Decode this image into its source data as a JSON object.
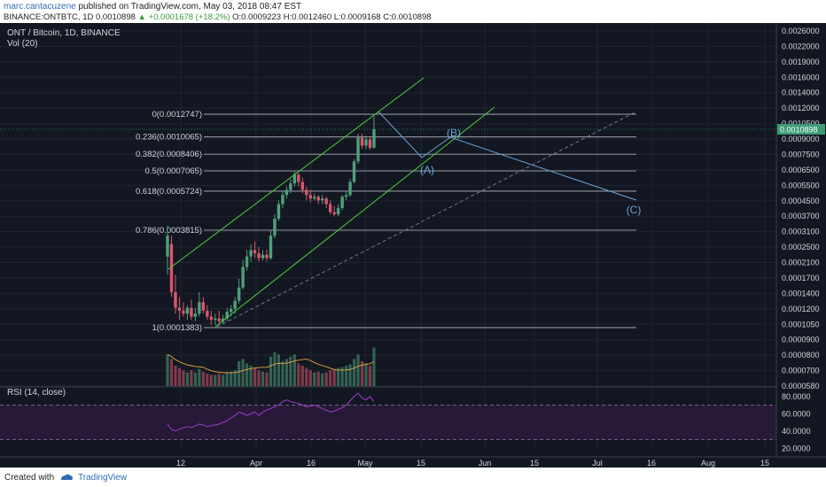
{
  "header": {
    "author": "marc.cantacuzene",
    "published_text": " published on TradingView.com, May 03, 2018 08:47 EST",
    "symbol_line": "BINANCE:ONTBTC, 1D  0.0010898 ",
    "change": "▲ +0.0001678 (+18.2%)",
    "ohlc": " O:0.0009223 H:0.0012460 L:0.0009168 C:0.0010898"
  },
  "footer": {
    "created_with": "Created with",
    "brand": "TradingView"
  },
  "colors": {
    "background": "#131722",
    "candle_up": "#4fa07a",
    "candle_down": "#d9576b",
    "channel": "#4ccf3a",
    "fib": "#c8ccd6",
    "elliott": "#6ba6d8",
    "rsi": "#9b3fc8",
    "price_tag": "#3d9b75"
  },
  "chart_data": {
    "type": "candlestick",
    "title": "ONT / Bitcoin, 1D, BINANCE",
    "volume_label": "Vol (20)",
    "rsi_label": "RSI (14, close)",
    "x_ticks": [
      "12",
      "Apr",
      "16",
      "May",
      "15",
      "Jun",
      "15",
      "Jul",
      "16",
      "Aug",
      "15"
    ],
    "y_ticks": [
      "0.0026000",
      "0.0022000",
      "0.0019000",
      "0.0016000",
      "0.0014000",
      "0.0012000",
      "0.0010500",
      "0.0009000",
      "0.0007500",
      "0.0006500",
      "0.0005500",
      "0.0004500",
      "0.0003700",
      "0.0003100",
      "0.0002500",
      "0.0002100",
      "0.0001700",
      "0.0001400",
      "0.0001200",
      "0.0001050",
      "0.0000900",
      "0.0000800",
      "0.0000700",
      "0.0000580"
    ],
    "rsi_ticks": [
      "80.0000",
      "60.0000",
      "40.0000",
      "20.0000"
    ],
    "current_price_label": "0.0010898",
    "fib_levels": [
      {
        "label": "0(0.0012747)",
        "price": 0.0012747
      },
      {
        "label": "0.236(0.0010065)",
        "price": 0.0010065
      },
      {
        "label": "0.382(0.0008406)",
        "price": 0.0008406
      },
      {
        "label": "0.5(0.0007065)",
        "price": 0.0007065
      },
      {
        "label": "0.618(0.0005724)",
        "price": 0.0005724
      },
      {
        "label": "0.786(0.0003815)",
        "price": 0.0003815
      },
      {
        "label": "1(0.0001383)",
        "price": 0.0001383
      }
    ],
    "wave_labels": [
      "(A)",
      "(B)",
      "(C)"
    ],
    "candles": [
      [
        0.00029,
        0.0004,
        0.00036,
        0.00024
      ],
      [
        0.00033,
        0.00036,
        0.0002,
        0.00019
      ],
      [
        0.0002,
        0.00024,
        0.00017,
        0.00016
      ],
      [
        0.00017,
        0.00019,
        0.000165,
        0.00015
      ],
      [
        0.000165,
        0.00018,
        0.00016,
        0.000155
      ],
      [
        0.00016,
        0.000175,
        0.00017,
        0.00015
      ],
      [
        0.00017,
        0.000185,
        0.000155,
        0.00015
      ],
      [
        0.000155,
        0.00017,
        0.00016,
        0.000148
      ],
      [
        0.00016,
        0.0002,
        0.00018,
        0.000155
      ],
      [
        0.00018,
        0.00019,
        0.000165,
        0.00016
      ],
      [
        0.000165,
        0.000175,
        0.000155,
        0.00015
      ],
      [
        0.000155,
        0.000165,
        0.00015,
        0.000142
      ],
      [
        0.00015,
        0.00016,
        0.000152,
        0.000142
      ],
      [
        0.000152,
        0.000165,
        0.000148,
        0.000142
      ],
      [
        0.000148,
        0.000158,
        0.000152,
        0.000143
      ],
      [
        0.000152,
        0.00017,
        0.000163,
        0.000148
      ],
      [
        0.000163,
        0.000175,
        0.000168,
        0.000155
      ],
      [
        0.000168,
        0.00019,
        0.000183,
        0.00016
      ],
      [
        0.000183,
        0.00023,
        0.00021,
        0.000178
      ],
      [
        0.00021,
        0.00028,
        0.00026,
        0.000205
      ],
      [
        0.00026,
        0.00031,
        0.00029,
        0.00025
      ],
      [
        0.00029,
        0.00033,
        0.00031,
        0.000275
      ],
      [
        0.00031,
        0.00034,
        0.0003,
        0.000285
      ],
      [
        0.0003,
        0.00032,
        0.000285,
        0.000275
      ],
      [
        0.000285,
        0.00031,
        0.000295,
        0.000278
      ],
      [
        0.000295,
        0.00031,
        0.000285,
        0.000275
      ],
      [
        0.000285,
        0.00038,
        0.00036,
        0.00028
      ],
      [
        0.00036,
        0.00045,
        0.00043,
        0.00035
      ],
      [
        0.00043,
        0.00052,
        0.0005,
        0.00042
      ],
      [
        0.0005,
        0.00057,
        0.00055,
        0.00048
      ],
      [
        0.00055,
        0.0006,
        0.00058,
        0.00053
      ],
      [
        0.00058,
        0.00065,
        0.00062,
        0.00056
      ],
      [
        0.00062,
        0.0007,
        0.00068,
        0.0006
      ],
      [
        0.00068,
        0.00069,
        0.00063,
        0.0006
      ],
      [
        0.00063,
        0.00066,
        0.00058,
        0.00056
      ],
      [
        0.00058,
        0.0006,
        0.00055,
        0.00052
      ],
      [
        0.00055,
        0.00058,
        0.00053,
        0.00051
      ],
      [
        0.00053,
        0.00056,
        0.00054,
        0.00052
      ],
      [
        0.00054,
        0.00055,
        0.00052,
        0.0005
      ],
      [
        0.00052,
        0.00055,
        0.00053,
        0.0005
      ],
      [
        0.00053,
        0.00054,
        0.0005,
        0.00048
      ],
      [
        0.0005,
        0.00052,
        0.00046,
        0.00045
      ],
      [
        0.00046,
        0.00049,
        0.00045,
        0.00044
      ],
      [
        0.00045,
        0.0005,
        0.00048,
        0.00044
      ],
      [
        0.00048,
        0.00055,
        0.00054,
        0.00047
      ],
      [
        0.00054,
        0.00057,
        0.00055,
        0.00052
      ],
      [
        0.00055,
        0.00065,
        0.00063,
        0.00054
      ],
      [
        0.00063,
        0.0008,
        0.00078,
        0.00062
      ],
      [
        0.00078,
        0.00104,
        0.001,
        0.00076
      ],
      [
        0.001,
        0.00104,
        0.00092,
        0.00089
      ],
      [
        0.00092,
        0.00102,
        0.00098,
        0.00089
      ],
      [
        0.00098,
        0.00101,
        0.0009,
        0.00088
      ],
      [
        0.0009,
        0.00125,
        0.00109,
        0.00089
      ]
    ],
    "volume": [
      70,
      60,
      45,
      40,
      35,
      30,
      35,
      30,
      38,
      32,
      28,
      25,
      25,
      28,
      25,
      30,
      32,
      35,
      55,
      60,
      50,
      45,
      40,
      35,
      32,
      30,
      65,
      75,
      70,
      55,
      60,
      65,
      70,
      50,
      45,
      40,
      35,
      30,
      32,
      28,
      30,
      35,
      38,
      40,
      42,
      45,
      48,
      60,
      70,
      55,
      50,
      45,
      85
    ],
    "rsi": [
      48,
      42,
      40,
      42,
      44,
      45,
      44,
      46,
      48,
      47,
      45,
      46,
      47,
      48,
      50,
      52,
      55,
      58,
      62,
      60,
      58,
      60,
      62,
      58,
      62,
      64,
      66,
      68,
      70,
      74,
      76,
      74,
      73,
      72,
      70,
      68,
      69,
      70,
      68,
      66,
      64,
      62,
      63,
      65,
      67,
      70,
      75,
      80,
      84,
      78,
      76,
      80,
      74
    ]
  }
}
